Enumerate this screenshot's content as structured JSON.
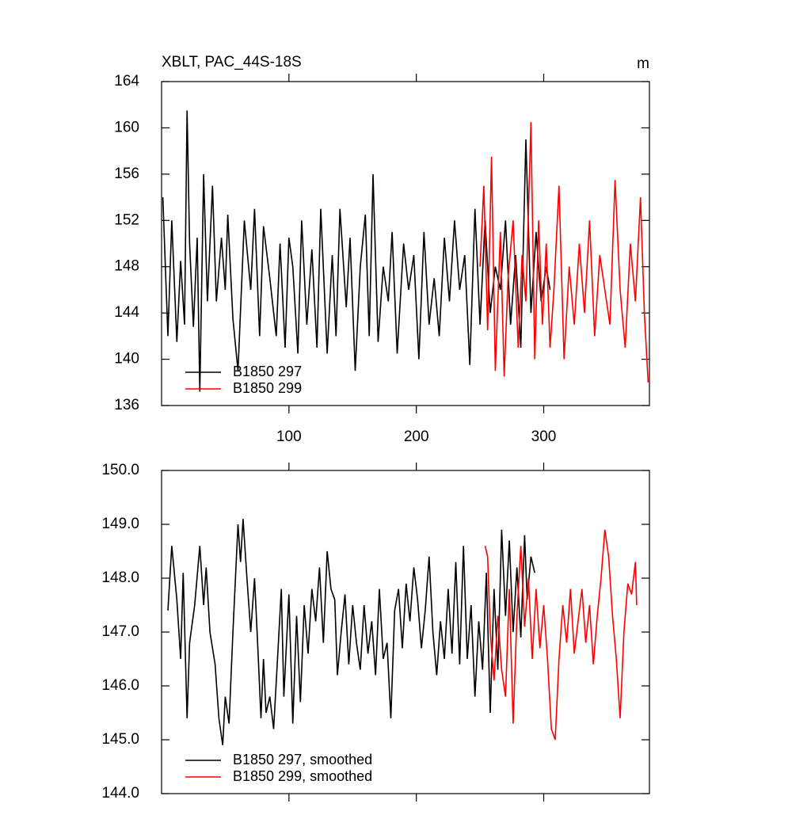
{
  "chart_data": [
    {
      "type": "line",
      "title": "XBLT, PAC_44S-18S",
      "units": "m",
      "xlim": [
        0,
        383
      ],
      "xticks": [
        100,
        200,
        300
      ],
      "ylim": [
        136,
        164
      ],
      "yticks": [
        136,
        140,
        144,
        148,
        152,
        156,
        160,
        164
      ],
      "legend": "lower left",
      "series": [
        {
          "name": "B1850 297",
          "color": "#000000",
          "x": [
            1,
            5,
            8,
            12,
            15,
            18,
            20,
            22,
            25,
            28,
            30,
            33,
            36,
            40,
            43,
            47,
            50,
            52,
            56,
            60,
            65,
            70,
            73,
            77,
            80,
            85,
            90,
            93,
            97,
            100,
            103,
            107,
            110,
            114,
            118,
            122,
            125,
            130,
            134,
            137,
            140,
            145,
            148,
            152,
            156,
            160,
            163,
            166,
            170,
            174,
            178,
            181,
            185,
            190,
            194,
            198,
            202,
            206,
            210,
            214,
            218,
            222,
            226,
            230,
            234,
            238,
            242,
            246,
            250,
            254,
            258,
            262,
            266,
            270,
            274,
            278,
            282,
            286,
            290,
            294,
            298,
            302,
            305
          ],
          "values": [
            154,
            142,
            152,
            141.5,
            148.5,
            143,
            161.5,
            150,
            142.8,
            150.5,
            137.2,
            156,
            145,
            155,
            145,
            150.5,
            146,
            152.5,
            143.5,
            139,
            152,
            146,
            153,
            142,
            151.5,
            147,
            142,
            150,
            141,
            150.5,
            148,
            140.5,
            152,
            143,
            149.5,
            141,
            153,
            140.5,
            149,
            142,
            153,
            144.5,
            150.5,
            139,
            148,
            152.5,
            142,
            156,
            141.5,
            148,
            145,
            151,
            140.5,
            150,
            146,
            149,
            140,
            151,
            143,
            147,
            142,
            150.5,
            145,
            152,
            146,
            149,
            139.5,
            153,
            143,
            152,
            144,
            148,
            146,
            152,
            143,
            149,
            141,
            159,
            144,
            151,
            145,
            148,
            146
          ]
        },
        {
          "name": "B1850 299",
          "color": "#ff0000",
          "x": [
            250,
            253,
            256,
            259,
            262,
            266,
            269,
            272,
            276,
            280,
            283,
            286,
            290,
            293,
            296,
            299,
            302,
            305,
            308,
            312,
            316,
            320,
            324,
            328,
            332,
            336,
            340,
            344,
            348,
            352,
            356,
            360,
            364,
            368,
            372,
            376,
            379,
            382
          ],
          "values": [
            148,
            155,
            142.5,
            157.5,
            139,
            151,
            138.5,
            147,
            152,
            141,
            149,
            145,
            160.5,
            140,
            152,
            143,
            150,
            141,
            146,
            155,
            140,
            148,
            143,
            150,
            144,
            152,
            142,
            149,
            146,
            143,
            155.5,
            146,
            141,
            150,
            145,
            154,
            144,
            138
          ]
        }
      ]
    },
    {
      "type": "line",
      "xlim": [
        0,
        383
      ],
      "xticks": [
        100,
        200,
        300
      ],
      "ylim": [
        144,
        150
      ],
      "yticks": [
        {
          "value": 144,
          "label": "144.0"
        },
        {
          "value": 145,
          "label": "145.0"
        },
        {
          "value": 146,
          "label": "146.0"
        },
        {
          "value": 147,
          "label": "147.0"
        },
        {
          "value": 148,
          "label": "148.0"
        },
        {
          "value": 149,
          "label": "149.0"
        },
        {
          "value": 150,
          "label": "150.0"
        }
      ],
      "legend": "lower left",
      "series": [
        {
          "name": "B1850 297, smoothed",
          "color": "#000000",
          "x": [
            5,
            8,
            12,
            15,
            17,
            20,
            22,
            26,
            30,
            33,
            35,
            38,
            42,
            45,
            48,
            50,
            53,
            56,
            60,
            62,
            64,
            67,
            70,
            73,
            76,
            78,
            80,
            82,
            85,
            88,
            91,
            94,
            96,
            100,
            103,
            106,
            109,
            112,
            115,
            118,
            121,
            124,
            127,
            130,
            133,
            136,
            138,
            141,
            144,
            147,
            150,
            153,
            156,
            159,
            162,
            165,
            168,
            171,
            174,
            177,
            180,
            183,
            186,
            189,
            192,
            195,
            198,
            201,
            204,
            207,
            210,
            213,
            216,
            219,
            222,
            225,
            228,
            231,
            234,
            237,
            240,
            243,
            246,
            249,
            252,
            255,
            258,
            261,
            264,
            267,
            270,
            273,
            276,
            279,
            282,
            285,
            287,
            290,
            293
          ],
          "values": [
            147.4,
            148.6,
            147.6,
            146.5,
            148.1,
            145.4,
            146.8,
            147.5,
            148.6,
            147.5,
            148.2,
            147,
            146.4,
            145.4,
            144.9,
            145.8,
            145.3,
            147,
            149,
            148.3,
            149.1,
            148,
            147,
            148,
            146.5,
            145.4,
            146.5,
            145.5,
            145.8,
            145.2,
            146.5,
            147.8,
            145.8,
            147.7,
            145.3,
            147.3,
            145.7,
            147.5,
            146.6,
            147.8,
            147.2,
            148.2,
            146.8,
            148.5,
            147.8,
            147.6,
            146.2,
            147,
            147.7,
            146.4,
            147.5,
            146.8,
            146.3,
            147.5,
            146.6,
            147.2,
            146.2,
            147.8,
            146.5,
            146.8,
            145.4,
            147.4,
            147.8,
            146.7,
            147.9,
            147.2,
            148.2,
            147.6,
            146.7,
            147.4,
            148.4,
            147,
            146.2,
            147.2,
            146.5,
            147.8,
            146.6,
            148.3,
            146.4,
            148.6,
            146.5,
            147.5,
            145.8,
            147.2,
            146.3,
            148.1,
            145.5,
            147.8,
            146.3,
            148.9,
            147.3,
            148.7,
            147,
            148.2,
            146.9,
            148.8,
            147.6,
            148.4,
            148.1
          ]
        },
        {
          "name": "B1850 299, smoothed",
          "color": "#ff0000",
          "x": [
            254,
            256,
            258,
            261,
            264,
            267,
            270,
            273,
            276,
            279,
            282,
            285,
            288,
            291,
            294,
            297,
            300,
            303,
            306,
            309,
            312,
            315,
            318,
            321,
            324,
            327,
            330,
            333,
            336,
            339,
            342,
            345,
            348,
            351,
            354,
            357,
            360,
            363,
            366,
            369,
            372,
            373
          ],
          "values": [
            148.6,
            148.4,
            147,
            146.1,
            147.3,
            146.3,
            145.8,
            147.8,
            145.3,
            147.3,
            148.6,
            147.1,
            148,
            146.5,
            147.8,
            146.7,
            147.5,
            146.5,
            145.2,
            145,
            146.5,
            147.5,
            146.8,
            147.8,
            146.6,
            147.2,
            147.8,
            146.8,
            147.5,
            146.4,
            147.3,
            148,
            148.9,
            148.4,
            147.3,
            146.5,
            145.4,
            147,
            147.9,
            147.7,
            148.3,
            147.5
          ]
        }
      ]
    }
  ]
}
